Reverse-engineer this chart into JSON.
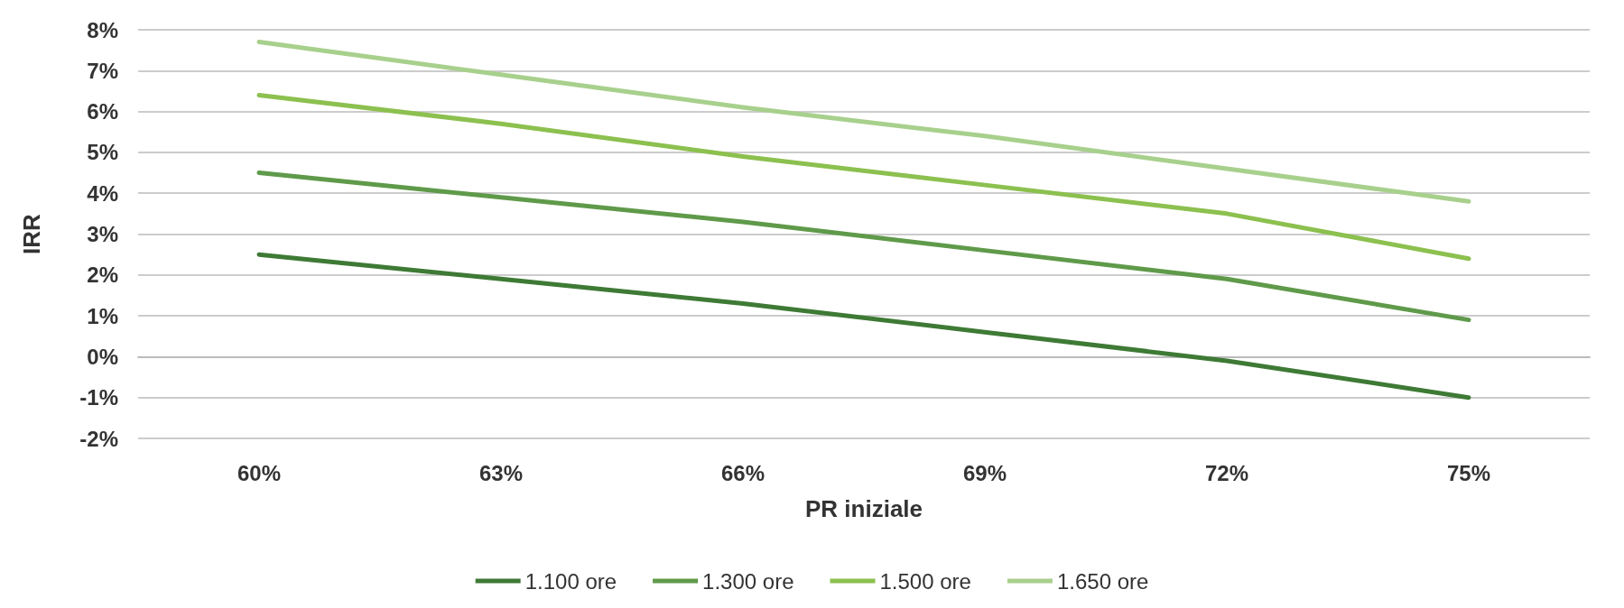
{
  "chart_data": {
    "type": "line",
    "xlabel": "PR iniziale",
    "ylabel": "IRR",
    "categories": [
      "60%",
      "63%",
      "66%",
      "69%",
      "72%",
      "75%"
    ],
    "series": [
      {
        "name": "1.100 ore",
        "color": "#3e7a35",
        "values": [
          2.5,
          1.9,
          1.3,
          0.6,
          -0.1,
          -1.0
        ]
      },
      {
        "name": "1.300 ore",
        "color": "#5f9a4a",
        "values": [
          4.5,
          3.9,
          3.3,
          2.6,
          1.9,
          0.9
        ]
      },
      {
        "name": "1.500 ore",
        "color": "#8cc04f",
        "values": [
          6.4,
          5.7,
          4.9,
          4.2,
          3.5,
          2.4
        ]
      },
      {
        "name": "1.650 ore",
        "color": "#a8d08d",
        "values": [
          7.7,
          6.9,
          6.1,
          5.4,
          4.6,
          3.8
        ]
      }
    ],
    "ylim": [
      -2,
      8
    ],
    "yticks": [
      {
        "value": -2,
        "label": "-2%"
      },
      {
        "value": -1,
        "label": "-1%"
      },
      {
        "value": 0,
        "label": "0%"
      },
      {
        "value": 1,
        "label": "1%"
      },
      {
        "value": 2,
        "label": "2%"
      },
      {
        "value": 3,
        "label": "3%"
      },
      {
        "value": 4,
        "label": "4%"
      },
      {
        "value": 5,
        "label": "5%"
      },
      {
        "value": 6,
        "label": "6%"
      },
      {
        "value": 7,
        "label": "7%"
      },
      {
        "value": 8,
        "label": "8%"
      }
    ],
    "grid": "y",
    "legend": "bottom",
    "marker": "none",
    "line_style": "solid"
  }
}
